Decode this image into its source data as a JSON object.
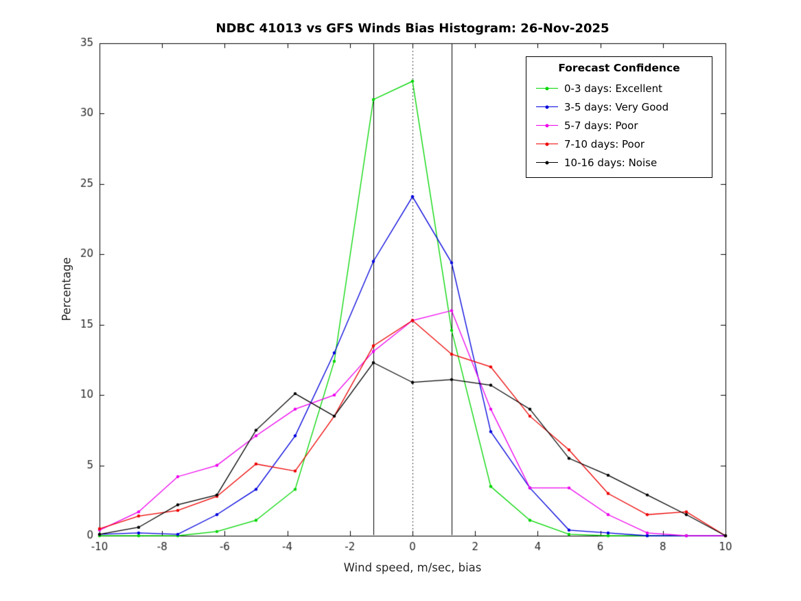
{
  "title": "NDBC 41013 vs GFS Winds Bias Histogram: 26-Nov-2025",
  "chart_data": {
    "type": "line",
    "title": "NDBC 41013 vs GFS Winds Bias Histogram: 26-Nov-2025",
    "xlabel": "Wind speed, m/sec, bias",
    "ylabel": "Percentage",
    "xlim": [
      -10,
      10
    ],
    "ylim": [
      0,
      35
    ],
    "xticks": [
      -10,
      -8,
      -6,
      -4,
      -2,
      0,
      2,
      4,
      6,
      8,
      10
    ],
    "yticks": [
      0,
      5,
      10,
      15,
      20,
      25,
      30,
      35
    ],
    "grid": false,
    "x": [
      -10,
      -8.75,
      -7.5,
      -6.25,
      -5,
      -3.75,
      -2.5,
      -1.25,
      0,
      1.25,
      2.5,
      3.75,
      5,
      6.25,
      7.5,
      8.75,
      10
    ],
    "series": [
      {
        "name": "0-3 days: Excellent",
        "color": "#00d600",
        "values": [
          0,
          0,
          0,
          0.3,
          1.1,
          3.3,
          12.4,
          31.0,
          32.3,
          14.6,
          3.5,
          1.1,
          0.1,
          0,
          0,
          0,
          0
        ]
      },
      {
        "name": "3-5 days: Very Good",
        "color": "#0000dd",
        "values": [
          0.1,
          0.2,
          0.1,
          1.5,
          3.3,
          7.1,
          13.0,
          19.5,
          24.1,
          19.4,
          7.4,
          3.4,
          0.4,
          0.2,
          0,
          0,
          0
        ]
      },
      {
        "name": "5-7 days: Poor",
        "color": "#ee00ee",
        "values": [
          0.4,
          1.7,
          4.2,
          5.0,
          7.1,
          9.0,
          10.0,
          13.1,
          15.3,
          16.0,
          9.0,
          3.4,
          3.4,
          1.5,
          0.2,
          0,
          0
        ]
      },
      {
        "name": "7-10 days: Poor",
        "color": "#ee0000",
        "values": [
          0.5,
          1.4,
          1.8,
          2.8,
          5.1,
          4.6,
          8.5,
          13.5,
          15.3,
          12.9,
          12.0,
          8.5,
          6.1,
          3.0,
          1.5,
          1.7,
          0
        ]
      },
      {
        "name": "10-16 days: Noise",
        "color": "#000000",
        "values": [
          0.1,
          0.6,
          2.2,
          2.9,
          7.5,
          10.1,
          8.5,
          12.3,
          10.9,
          11.1,
          10.7,
          9.0,
          5.5,
          4.3,
          2.9,
          1.5,
          0
        ]
      }
    ],
    "ref_lines": [
      {
        "x": -1.25,
        "style": "solid"
      },
      {
        "x": 0,
        "style": "dotted"
      },
      {
        "x": 1.25,
        "style": "solid"
      }
    ],
    "legend": {
      "title": "Forecast Confidence",
      "position": "top-right"
    }
  }
}
